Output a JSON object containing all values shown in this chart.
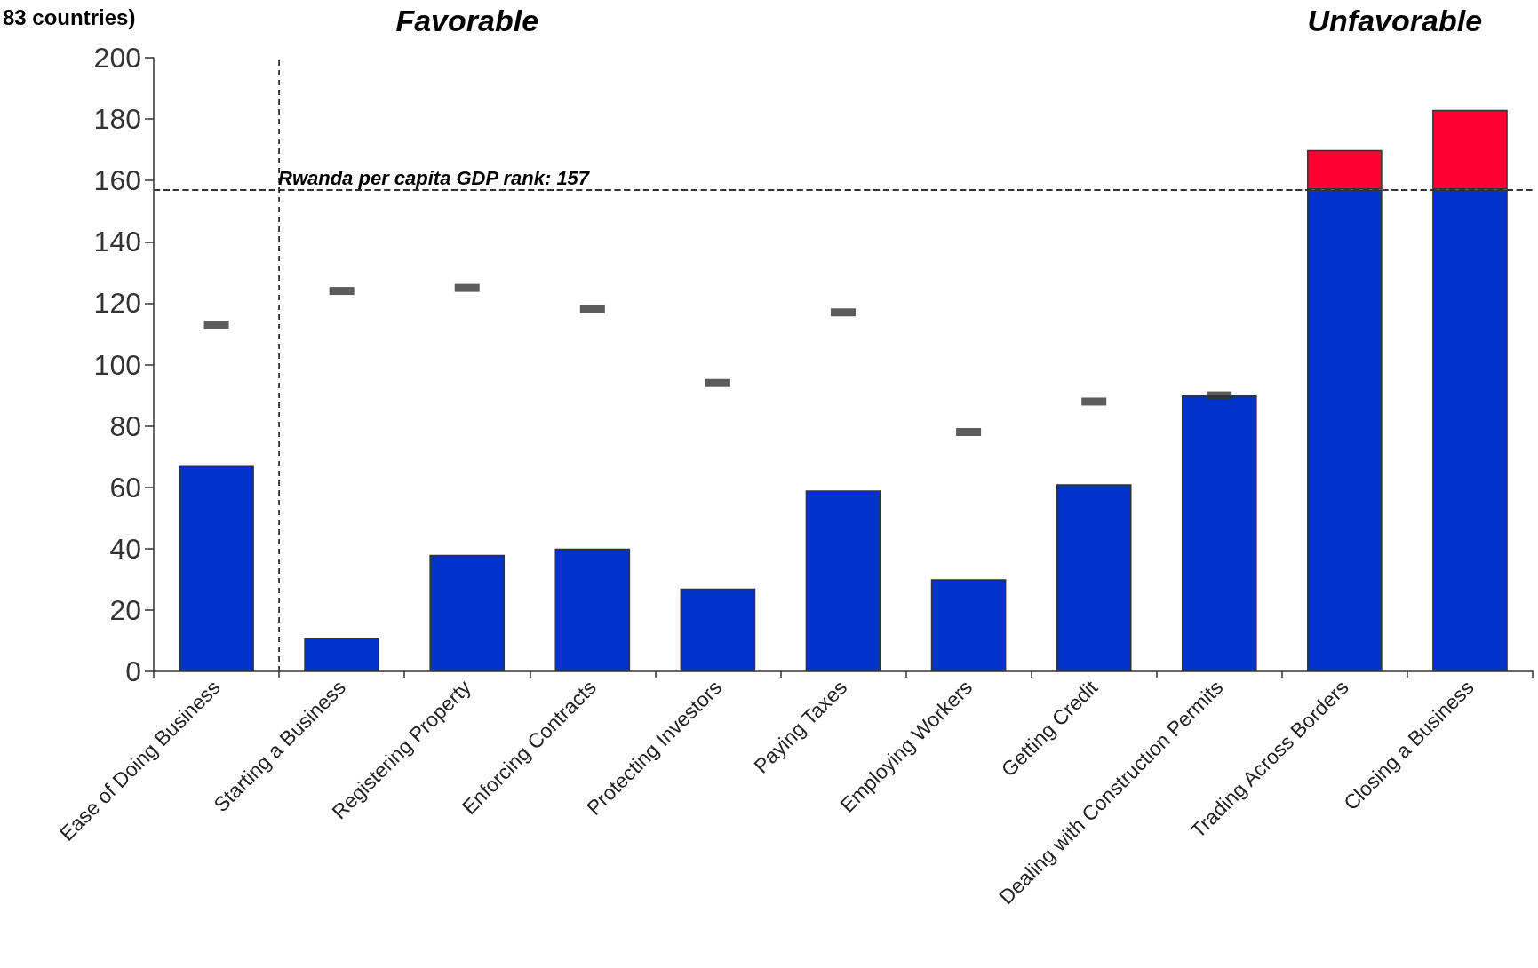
{
  "chart_data": {
    "type": "bar",
    "ylabel": "83 countries)",
    "categories": [
      "Ease of Doing Business",
      "Starting a Business",
      "Registering Property",
      "Enforcing Contracts",
      "Protecting Investors",
      "Paying Taxes",
      "Employing Workers",
      "Getting Credit",
      "Dealing with Construction Permits",
      "Trading Across Borders",
      "Closing a Business"
    ],
    "stacked": true,
    "series": [
      {
        "color": "#0033cc",
        "values": [
          67,
          11,
          38,
          40,
          27,
          59,
          30,
          61,
          90,
          157,
          157
        ]
      },
      {
        "color": "#ff0033",
        "values": [
          null,
          null,
          null,
          null,
          null,
          null,
          null,
          null,
          null,
          13,
          26
        ]
      },
      {
        "type": "scatter",
        "color": "#333333",
        "values": [
          113,
          124,
          125,
          118,
          94,
          117,
          78,
          88,
          90,
          null,
          null
        ]
      }
    ],
    "ylim": [
      0,
      200
    ],
    "yticks": [
      0,
      20,
      40,
      60,
      80,
      100,
      120,
      140,
      160,
      180,
      200
    ],
    "ref_lines": [
      {
        "axis": "y",
        "value": 157,
        "label": "Rwanda per capita GDP rank: 157",
        "line_style": "dashed",
        "color": "#333333"
      }
    ],
    "annotations": [
      "Favorable",
      "Unfavorable"
    ],
    "grid": false
  }
}
